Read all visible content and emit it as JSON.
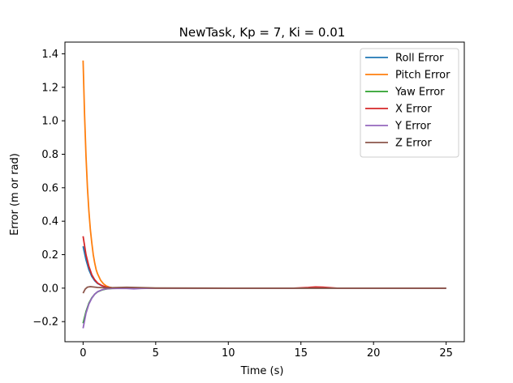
{
  "chart_data": {
    "type": "line",
    "title": "NewTask, Kp = 7, Ki = 0.01",
    "xlabel": "Time (s)",
    "ylabel": "Error (m or rad)",
    "xlim": [
      -1.25,
      26.25
    ],
    "ylim": [
      -0.32,
      1.47
    ],
    "xticks": [
      0,
      5,
      10,
      15,
      20,
      25
    ],
    "yticks": [
      -0.2,
      0.0,
      0.2,
      0.4,
      0.6,
      0.8,
      1.0,
      1.2,
      1.4
    ],
    "xtick_labels": [
      "0",
      "5",
      "10",
      "15",
      "20",
      "25"
    ],
    "ytick_labels": [
      "−0.2",
      "0.0",
      "0.2",
      "0.4",
      "0.6",
      "0.8",
      "1.0",
      "1.2",
      "1.4"
    ],
    "grid": false,
    "legend_position": "top-right",
    "series": [
      {
        "name": "Roll Error",
        "color": "#1f77b4",
        "x": [
          0,
          0.2,
          0.4,
          0.6,
          0.8,
          1.0,
          1.3,
          1.6,
          2.0,
          3.0,
          5.0,
          10.0,
          15.0,
          20.0,
          25.0
        ],
        "y": [
          0.25,
          0.17,
          0.11,
          0.07,
          0.045,
          0.028,
          0.014,
          0.006,
          0.002,
          0.0,
          0.0,
          0.0,
          0.0,
          0.0,
          0.0
        ]
      },
      {
        "name": "Pitch Error",
        "color": "#ff7f0e",
        "x": [
          0,
          0.1,
          0.2,
          0.3,
          0.4,
          0.5,
          0.6,
          0.7,
          0.8,
          0.9,
          1.0,
          1.2,
          1.4,
          1.6,
          1.8,
          2.0,
          2.5,
          3.0,
          4.0,
          5.0,
          10.0,
          15.0,
          20.0,
          25.0
        ],
        "y": [
          1.36,
          1.04,
          0.79,
          0.6,
          0.46,
          0.35,
          0.27,
          0.2,
          0.15,
          0.11,
          0.085,
          0.048,
          0.026,
          0.013,
          0.006,
          0.002,
          0.0,
          0.001,
          0.0,
          0.0,
          0.0,
          0.0,
          0.0,
          0.0
        ]
      },
      {
        "name": "Yaw Error",
        "color": "#2ca02c",
        "x": [
          0,
          0.2,
          0.4,
          0.6,
          0.8,
          1.0,
          1.3,
          1.6,
          2.0,
          3.0,
          5.0,
          10.0,
          15.0,
          20.0,
          25.0
        ],
        "y": [
          -0.21,
          -0.14,
          -0.09,
          -0.058,
          -0.036,
          -0.022,
          -0.011,
          -0.005,
          -0.002,
          0.0,
          0.0,
          0.0,
          0.0,
          0.0,
          0.0
        ]
      },
      {
        "name": "X Error",
        "color": "#d62728",
        "x": [
          0,
          0.2,
          0.4,
          0.6,
          0.8,
          1.0,
          1.3,
          1.6,
          2.0,
          3.0,
          5.0,
          10.0,
          14.5,
          15.5,
          16.0,
          16.5,
          17.5,
          20.0,
          25.0
        ],
        "y": [
          0.31,
          0.2,
          0.13,
          0.08,
          0.05,
          0.03,
          0.015,
          0.006,
          0.002,
          0.0,
          0.0,
          0.0,
          0.0,
          0.004,
          0.007,
          0.006,
          0.0,
          0.0,
          0.0
        ]
      },
      {
        "name": "Y Error",
        "color": "#9467bd",
        "x": [
          0,
          0.2,
          0.4,
          0.6,
          0.8,
          1.0,
          1.3,
          1.6,
          2.0,
          3.0,
          3.5,
          4.0,
          5.0,
          10.0,
          15.0,
          20.0,
          25.0
        ],
        "y": [
          -0.24,
          -0.15,
          -0.095,
          -0.06,
          -0.036,
          -0.021,
          -0.01,
          -0.004,
          -0.001,
          -0.002,
          -0.004,
          -0.002,
          0.0,
          0.0,
          0.0,
          0.0,
          0.0
        ]
      },
      {
        "name": "Z Error",
        "color": "#8c564b",
        "x": [
          0,
          0.15,
          0.3,
          0.5,
          0.7,
          1.0,
          1.5,
          2.0,
          3.0,
          5.0,
          10.0,
          15.0,
          20.0,
          25.0
        ],
        "y": [
          -0.03,
          -0.005,
          0.006,
          0.009,
          0.007,
          0.004,
          0.002,
          0.003,
          0.005,
          0.001,
          0.0,
          0.0,
          0.0,
          0.0
        ]
      }
    ]
  }
}
